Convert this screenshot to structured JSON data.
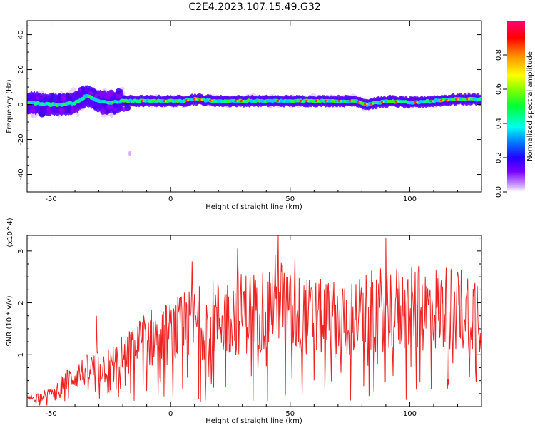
{
  "title": "C2E4.2023.107.15.49.G32",
  "chart_data": [
    {
      "type": "heatmap",
      "xlabel": "Height of straight line (km)",
      "ylabel": "Frequency (Hz)",
      "xlim": [
        -60,
        130
      ],
      "ylim": [
        -50,
        48
      ],
      "xticks": [
        -50,
        0,
        50,
        100
      ],
      "yticks": [
        -40,
        -20,
        0,
        20,
        40
      ],
      "colorbar": {
        "label": "Normalized spectral amplitude",
        "range": [
          0,
          1
        ],
        "ticks": [
          "0.0",
          "0.2",
          "0.4",
          "0.6",
          "0.8"
        ],
        "tick_values": [
          0.0,
          0.2,
          0.4,
          0.6,
          0.8
        ]
      },
      "ridge_frequency_hz": [
        [
          -58,
          1
        ],
        [
          -50,
          0
        ],
        [
          -45,
          0
        ],
        [
          -40,
          1
        ],
        [
          -35,
          5
        ],
        [
          -30,
          2
        ],
        [
          -25,
          1
        ],
        [
          -20,
          2
        ],
        [
          -10,
          2
        ],
        [
          0,
          2
        ],
        [
          5,
          2
        ],
        [
          10,
          3
        ],
        [
          20,
          2
        ],
        [
          30,
          2
        ],
        [
          40,
          2
        ],
        [
          50,
          2
        ],
        [
          60,
          2
        ],
        [
          70,
          2
        ],
        [
          78,
          2
        ],
        [
          82,
          0
        ],
        [
          86,
          1
        ],
        [
          92,
          2
        ],
        [
          100,
          1
        ],
        [
          110,
          2
        ],
        [
          120,
          3
        ],
        [
          130,
          3
        ]
      ]
    },
    {
      "type": "line",
      "xlabel": "Height of straight line (km)",
      "ylabel": "SNR (10 * v/v)",
      "yscale_note": "(x10^4)",
      "xlim": [
        -60,
        130
      ],
      "ylim": [
        0,
        3.3
      ],
      "xticks": [
        -50,
        0,
        50,
        100
      ],
      "yticks": [
        1,
        2,
        3
      ],
      "color": "#ee2222",
      "envelope": [
        [
          -60,
          0.15
        ],
        [
          -50,
          0.25
        ],
        [
          -45,
          0.45
        ],
        [
          -40,
          0.6
        ],
        [
          -35,
          0.7
        ],
        [
          -30,
          0.75
        ],
        [
          -25,
          0.8
        ],
        [
          -20,
          0.95
        ],
        [
          -15,
          1.1
        ],
        [
          -10,
          1.3
        ],
        [
          0,
          1.4
        ],
        [
          5,
          1.5
        ],
        [
          10,
          1.6
        ],
        [
          20,
          1.7
        ],
        [
          30,
          1.8
        ],
        [
          40,
          1.9
        ],
        [
          45,
          2.1
        ],
        [
          50,
          1.8
        ],
        [
          60,
          1.7
        ],
        [
          70,
          1.7
        ],
        [
          80,
          1.75
        ],
        [
          90,
          1.9
        ],
        [
          100,
          1.85
        ],
        [
          110,
          1.9
        ],
        [
          120,
          1.9
        ],
        [
          130,
          1.85
        ]
      ],
      "peaks": [
        [
          -31,
          1.75
        ],
        [
          -13,
          1.65
        ],
        [
          9,
          2.8
        ],
        [
          28,
          3.05
        ],
        [
          45,
          3.3
        ],
        [
          52,
          2.9
        ],
        [
          90,
          3.25
        ],
        [
          104,
          2.7
        ],
        [
          120,
          2.6
        ]
      ]
    }
  ]
}
